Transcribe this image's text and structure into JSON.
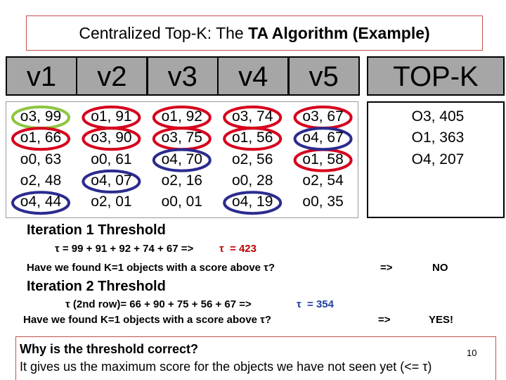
{
  "header": {
    "title_plain": "Centralized Top-K: The ",
    "title_bold": "TA Algorithm (Example)"
  },
  "table": {
    "columns": [
      "v1",
      "v2",
      "v3",
      "v4",
      "v5"
    ],
    "topk_header": "TOP-K",
    "lists": [
      [
        "o3, 99",
        "o1, 66",
        "o0, 63",
        "o2, 48",
        "o4, 44"
      ],
      [
        "o1, 91",
        "o3, 90",
        "o0, 61",
        "o4, 07",
        "o2, 01"
      ],
      [
        "o1, 92",
        "o3, 75",
        "o4, 70",
        "o2, 16",
        "o0, 01"
      ],
      [
        "o3, 74",
        "o1, 56",
        "o2, 56",
        "o0, 28",
        "o4, 19"
      ],
      [
        "o3, 67",
        "o4, 67",
        "o1, 58",
        "o2, 54",
        "o0, 35"
      ]
    ],
    "topk": [
      "O3, 405",
      "O1, 363",
      "O4, 207"
    ]
  },
  "iterations": [
    {
      "heading": "Iteration 1 Threshold",
      "formula": "τ = 99 + 91 + 92 + 74 + 67 =>",
      "result": "τ  = 423",
      "question": "Have we found K=1 objects with a score above τ?",
      "arrow": "=>",
      "answer": "NO"
    },
    {
      "heading": "Iteration 2 Threshold",
      "formula": "τ (2nd row)= 66 + 90 + 75 + 56 + 67 =>",
      "result": "τ  = 354",
      "question": "Have we found K=1 objects with a score above τ?",
      "arrow": "=>",
      "answer": "YES!"
    }
  ],
  "footer": {
    "question": "Why is the threshold correct?",
    "page": "10",
    "answer": "It gives us the maximum score for the objects we have not seen yet (<= τ)"
  }
}
